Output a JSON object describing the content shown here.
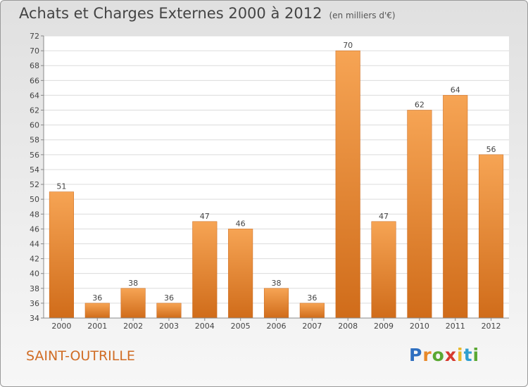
{
  "title": "Achats et Charges Externes 2000 à 2012",
  "unit": "(en milliers d'€)",
  "footer": {
    "location": "SAINT-OUTRILLE",
    "brand_letters": [
      {
        "ch": "P",
        "color": "#2f6fc0"
      },
      {
        "ch": "r",
        "color": "#e8892a"
      },
      {
        "ch": "o",
        "color": "#5aa832"
      },
      {
        "ch": "x",
        "color": "#d63a2f"
      },
      {
        "ch": "i",
        "color": "#e8b92a"
      },
      {
        "ch": "t",
        "color": "#2f9fd0"
      },
      {
        "ch": "i",
        "color": "#5aa832"
      }
    ]
  },
  "chart_data": {
    "type": "bar",
    "categories": [
      "2000",
      "2001",
      "2002",
      "2003",
      "2004",
      "2005",
      "2006",
      "2007",
      "2008",
      "2009",
      "2010",
      "2011",
      "2012"
    ],
    "values": [
      51,
      36,
      38,
      36,
      47,
      46,
      38,
      36,
      70,
      47,
      62,
      64,
      56
    ],
    "ylim": [
      34,
      72
    ],
    "ytick_step": 2,
    "grid": true,
    "bar_color": "#e8822a",
    "xlabel": "",
    "ylabel": ""
  }
}
